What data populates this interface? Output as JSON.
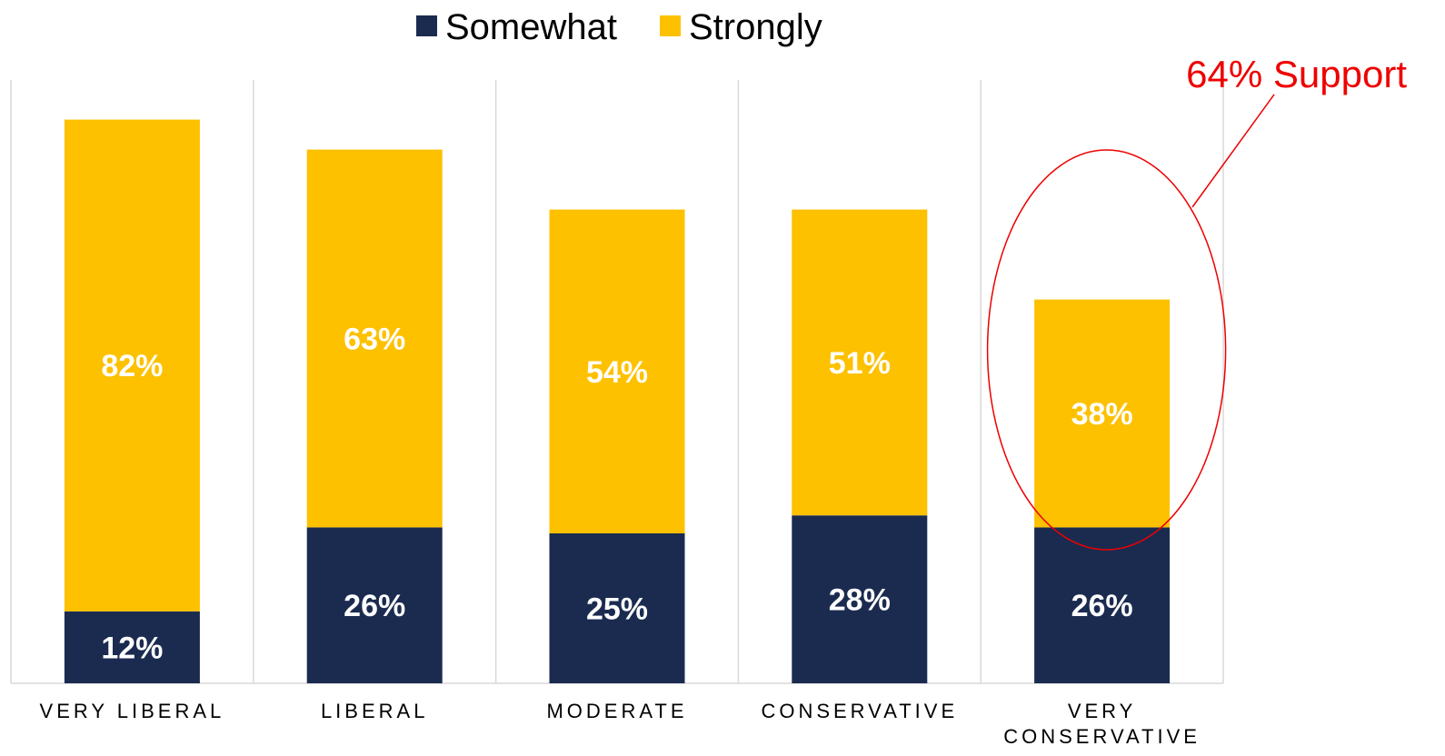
{
  "chart_data": {
    "type": "bar",
    "stacked": true,
    "categories": [
      "VERY LIBERAL",
      "LIBERAL",
      "MODERATE",
      "CONSERVATIVE",
      "VERY CONSERVATIVE"
    ],
    "series": [
      {
        "name": "Somewhat",
        "values": [
          12,
          26,
          25,
          28,
          26
        ],
        "labels": [
          "12%",
          "26%",
          "25%",
          "28%",
          "26%"
        ],
        "color": "#1b2b50"
      },
      {
        "name": "Strongly",
        "values": [
          82,
          63,
          54,
          51,
          38
        ],
        "labels": [
          "82%",
          "63%",
          "54%",
          "51%",
          "38%"
        ],
        "color": "#fdc100"
      }
    ],
    "ylim": [
      0,
      100
    ],
    "grid": "vertical category separators",
    "legend": "top-center",
    "annotation": {
      "text": "64% Support",
      "target_category": "VERY CONSERVATIVE",
      "color": "#ee0000"
    }
  }
}
